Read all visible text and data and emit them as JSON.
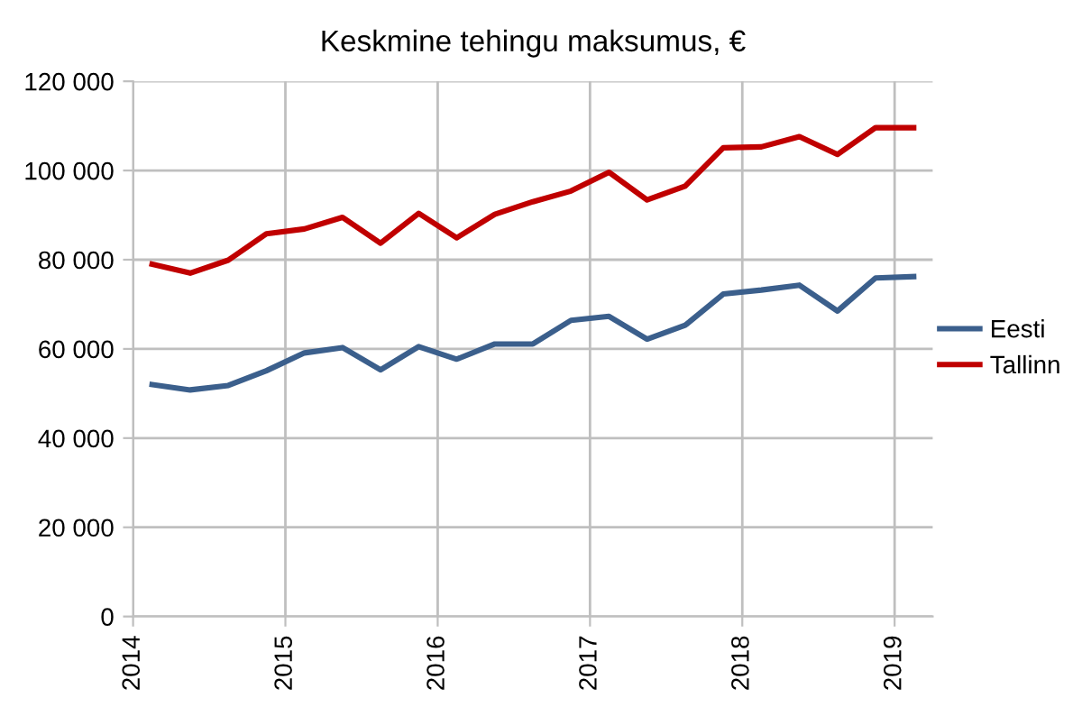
{
  "chart_data": {
    "type": "line",
    "title": "Keskmine tehingu maksumus, €",
    "x": [
      2014.125,
      2014.375,
      2014.625,
      2014.875,
      2015.125,
      2015.375,
      2015.625,
      2015.875,
      2016.125,
      2016.375,
      2016.625,
      2016.875,
      2017.125,
      2017.375,
      2017.625,
      2017.875,
      2018.125,
      2018.375,
      2018.625,
      2018.875,
      2019.125
    ],
    "series": [
      {
        "name": "Eesti",
        "color": "#3b5f8c",
        "values": [
          52000,
          50800,
          51800,
          55100,
          59100,
          60300,
          55300,
          60500,
          57700,
          61100,
          61100,
          66400,
          67300,
          62200,
          65300,
          72300,
          73200,
          74300,
          68500,
          75900,
          76200
        ]
      },
      {
        "name": "Tallinn",
        "color": "#c00000",
        "values": [
          79000,
          77000,
          79900,
          85800,
          86900,
          89500,
          83700,
          90400,
          84900,
          90200,
          93000,
          95400,
          99600,
          93400,
          96500,
          105100,
          105300,
          107600,
          103600,
          109600,
          109600
        ]
      }
    ],
    "xlim": [
      2014,
      2019.25
    ],
    "xticks": [
      2014,
      2015,
      2016,
      2017,
      2018,
      2019
    ],
    "ylim": [
      0,
      120000
    ],
    "yticks": [
      {
        "value": 0,
        "label": "0"
      },
      {
        "value": 20000,
        "label": "20 000"
      },
      {
        "value": 40000,
        "label": "40 000"
      },
      {
        "value": 60000,
        "label": "60 000"
      },
      {
        "value": 80000,
        "label": "80 000"
      },
      {
        "value": 100000,
        "label": "100 000"
      },
      {
        "value": 120000,
        "label": "120 000"
      }
    ],
    "grid": true,
    "legend": "right",
    "marker": "none",
    "line_style": "solid"
  }
}
